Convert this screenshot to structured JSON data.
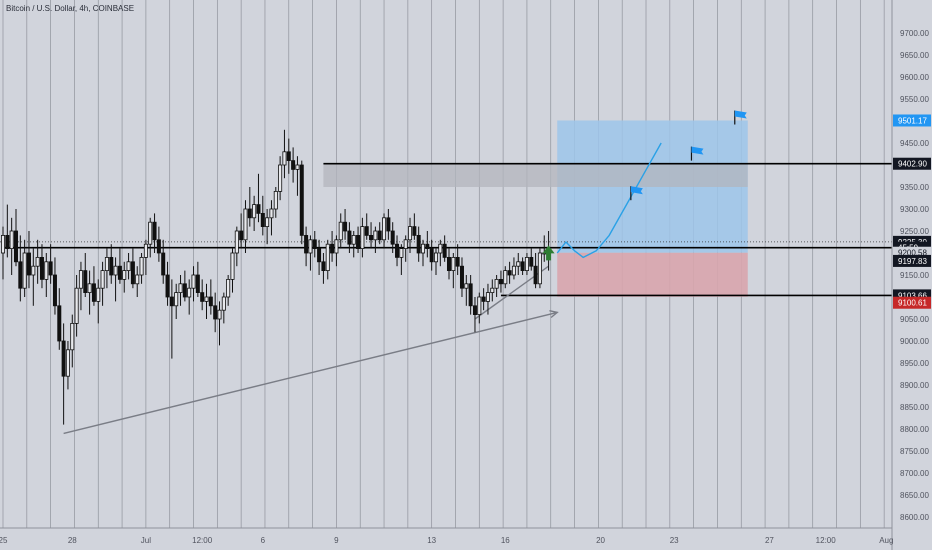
{
  "title": "Bitcoin / U.S. Dollar, 4h, COINBASE",
  "colors": {
    "background": "#d1d4dc",
    "grid": "#8f929b",
    "up": "#1a1a1a",
    "down": "#1a1a1a",
    "target_zone": "#9ec5ea",
    "stop_zone": "#d8a5ad",
    "supply_zone": "#b3b5bd",
    "projection": "#2aa1e6",
    "flag": "#2196f3",
    "arrow": "#2e7d32",
    "trendline": "#7a7d86"
  },
  "chart_data": {
    "type": "candlestick",
    "title": "Bitcoin / U.S. Dollar, 4h, COINBASE",
    "xlabel": "",
    "ylabel": "",
    "ylim": [
      8575,
      9775
    ],
    "grid": "vertical",
    "y_ticks": [
      8600,
      8650,
      8700,
      8750,
      8800,
      8850,
      8900,
      8950,
      9000,
      9050,
      9100,
      9150,
      9200,
      9250,
      9300,
      9350,
      9400,
      9450,
      9500,
      9550,
      9600,
      9650,
      9700
    ],
    "y_tick_labels": [
      "8600.00",
      "8650.00",
      "8700.00",
      "8750.00",
      "8800.00",
      "8850.00",
      "8900.00",
      "8950.00",
      "9000.00",
      "9050.00",
      "9100.00",
      "9150.00",
      "9200.00",
      "9250.00",
      "9300.00",
      "9350.00",
      "9400.00",
      "9450.00",
      "9500.00",
      "9550.00",
      "9600.00",
      "9650.00",
      "9700.00"
    ],
    "x_labels": [
      {
        "label": "25",
        "bar": 0
      },
      {
        "label": "28",
        "bar": 16
      },
      {
        "label": "Jul",
        "bar": 33
      },
      {
        "label": "12:00",
        "bar": 46
      },
      {
        "label": "6",
        "bar": 60
      },
      {
        "label": "9",
        "bar": 77
      },
      {
        "label": "13",
        "bar": 99
      },
      {
        "label": "16",
        "bar": 116
      },
      {
        "label": "20",
        "bar": 138
      },
      {
        "label": "23",
        "bar": 155
      },
      {
        "label": "27",
        "bar": 177
      },
      {
        "label": "12:00",
        "bar": 190
      },
      {
        "label": "Aug",
        "bar": 204
      }
    ],
    "candles": [
      {
        "o": 9200,
        "h": 9260,
        "l": 9140,
        "c": 9240
      },
      {
        "o": 9240,
        "h": 9310,
        "l": 9190,
        "c": 9210
      },
      {
        "o": 9210,
        "h": 9280,
        "l": 9150,
        "c": 9250
      },
      {
        "o": 9250,
        "h": 9300,
        "l": 9170,
        "c": 9180
      },
      {
        "o": 9180,
        "h": 9240,
        "l": 9090,
        "c": 9120
      },
      {
        "o": 9120,
        "h": 9230,
        "l": 9100,
        "c": 9200
      },
      {
        "o": 9200,
        "h": 9250,
        "l": 9120,
        "c": 9150
      },
      {
        "o": 9150,
        "h": 9210,
        "l": 9080,
        "c": 9170
      },
      {
        "o": 9170,
        "h": 9230,
        "l": 9130,
        "c": 9190
      },
      {
        "o": 9190,
        "h": 9220,
        "l": 9120,
        "c": 9140
      },
      {
        "o": 9140,
        "h": 9200,
        "l": 9100,
        "c": 9180
      },
      {
        "o": 9180,
        "h": 9220,
        "l": 9130,
        "c": 9150
      },
      {
        "o": 9150,
        "h": 9190,
        "l": 9060,
        "c": 9080
      },
      {
        "o": 9080,
        "h": 9120,
        "l": 8980,
        "c": 9000
      },
      {
        "o": 9000,
        "h": 9040,
        "l": 8810,
        "c": 8920
      },
      {
        "o": 8920,
        "h": 9000,
        "l": 8890,
        "c": 8980
      },
      {
        "o": 8980,
        "h": 9060,
        "l": 8940,
        "c": 9040
      },
      {
        "o": 9040,
        "h": 9150,
        "l": 9010,
        "c": 9120
      },
      {
        "o": 9120,
        "h": 9180,
        "l": 9070,
        "c": 9160
      },
      {
        "o": 9160,
        "h": 9200,
        "l": 9100,
        "c": 9110
      },
      {
        "o": 9110,
        "h": 9160,
        "l": 9060,
        "c": 9130
      },
      {
        "o": 9130,
        "h": 9170,
        "l": 9080,
        "c": 9090
      },
      {
        "o": 9090,
        "h": 9140,
        "l": 9040,
        "c": 9120
      },
      {
        "o": 9120,
        "h": 9180,
        "l": 9080,
        "c": 9160
      },
      {
        "o": 9160,
        "h": 9210,
        "l": 9120,
        "c": 9190
      },
      {
        "o": 9190,
        "h": 9220,
        "l": 9130,
        "c": 9150
      },
      {
        "o": 9150,
        "h": 9190,
        "l": 9090,
        "c": 9170
      },
      {
        "o": 9170,
        "h": 9210,
        "l": 9130,
        "c": 9140
      },
      {
        "o": 9140,
        "h": 9180,
        "l": 9110,
        "c": 9160
      },
      {
        "o": 9160,
        "h": 9200,
        "l": 9140,
        "c": 9180
      },
      {
        "o": 9180,
        "h": 9210,
        "l": 9120,
        "c": 9130
      },
      {
        "o": 9130,
        "h": 9170,
        "l": 9100,
        "c": 9150
      },
      {
        "o": 9150,
        "h": 9200,
        "l": 9130,
        "c": 9190
      },
      {
        "o": 9190,
        "h": 9230,
        "l": 9150,
        "c": 9220
      },
      {
        "o": 9220,
        "h": 9280,
        "l": 9190,
        "c": 9270
      },
      {
        "o": 9270,
        "h": 9290,
        "l": 9200,
        "c": 9230
      },
      {
        "o": 9230,
        "h": 9260,
        "l": 9180,
        "c": 9200
      },
      {
        "o": 9200,
        "h": 9230,
        "l": 9130,
        "c": 9150
      },
      {
        "o": 9150,
        "h": 9180,
        "l": 9080,
        "c": 9100
      },
      {
        "o": 9100,
        "h": 9140,
        "l": 8960,
        "c": 9080
      },
      {
        "o": 9080,
        "h": 9130,
        "l": 9050,
        "c": 9110
      },
      {
        "o": 9110,
        "h": 9150,
        "l": 9080,
        "c": 9130
      },
      {
        "o": 9130,
        "h": 9160,
        "l": 9090,
        "c": 9100
      },
      {
        "o": 9100,
        "h": 9140,
        "l": 9060,
        "c": 9120
      },
      {
        "o": 9120,
        "h": 9170,
        "l": 9090,
        "c": 9150
      },
      {
        "o": 9150,
        "h": 9180,
        "l": 9100,
        "c": 9110
      },
      {
        "o": 9110,
        "h": 9140,
        "l": 9070,
        "c": 9090
      },
      {
        "o": 9090,
        "h": 9130,
        "l": 9050,
        "c": 9100
      },
      {
        "o": 9100,
        "h": 9140,
        "l": 9060,
        "c": 9080
      },
      {
        "o": 9080,
        "h": 9110,
        "l": 9020,
        "c": 9050
      },
      {
        "o": 9050,
        "h": 9090,
        "l": 8990,
        "c": 9070
      },
      {
        "o": 9070,
        "h": 9110,
        "l": 9040,
        "c": 9100
      },
      {
        "o": 9100,
        "h": 9150,
        "l": 9080,
        "c": 9140
      },
      {
        "o": 9140,
        "h": 9210,
        "l": 9110,
        "c": 9200
      },
      {
        "o": 9200,
        "h": 9260,
        "l": 9170,
        "c": 9250
      },
      {
        "o": 9250,
        "h": 9290,
        "l": 9210,
        "c": 9230
      },
      {
        "o": 9230,
        "h": 9320,
        "l": 9200,
        "c": 9300
      },
      {
        "o": 9300,
        "h": 9350,
        "l": 9260,
        "c": 9280
      },
      {
        "o": 9280,
        "h": 9330,
        "l": 9250,
        "c": 9310
      },
      {
        "o": 9310,
        "h": 9380,
        "l": 9270,
        "c": 9290
      },
      {
        "o": 9290,
        "h": 9330,
        "l": 9240,
        "c": 9260
      },
      {
        "o": 9260,
        "h": 9300,
        "l": 9220,
        "c": 9280
      },
      {
        "o": 9280,
        "h": 9320,
        "l": 9240,
        "c": 9300
      },
      {
        "o": 9300,
        "h": 9350,
        "l": 9280,
        "c": 9340
      },
      {
        "o": 9340,
        "h": 9420,
        "l": 9320,
        "c": 9400
      },
      {
        "o": 9400,
        "h": 9480,
        "l": 9370,
        "c": 9430
      },
      {
        "o": 9430,
        "h": 9460,
        "l": 9380,
        "c": 9410
      },
      {
        "o": 9410,
        "h": 9440,
        "l": 9360,
        "c": 9390
      },
      {
        "o": 9390,
        "h": 9420,
        "l": 9330,
        "c": 9400
      },
      {
        "o": 9400,
        "h": 9410,
        "l": 9220,
        "c": 9240
      },
      {
        "o": 9240,
        "h": 9260,
        "l": 9170,
        "c": 9200
      },
      {
        "o": 9200,
        "h": 9240,
        "l": 9160,
        "c": 9230
      },
      {
        "o": 9230,
        "h": 9250,
        "l": 9190,
        "c": 9210
      },
      {
        "o": 9210,
        "h": 9230,
        "l": 9150,
        "c": 9180
      },
      {
        "o": 9180,
        "h": 9200,
        "l": 9130,
        "c": 9160
      },
      {
        "o": 9160,
        "h": 9230,
        "l": 9140,
        "c": 9220
      },
      {
        "o": 9220,
        "h": 9250,
        "l": 9180,
        "c": 9200
      },
      {
        "o": 9200,
        "h": 9240,
        "l": 9170,
        "c": 9230
      },
      {
        "o": 9230,
        "h": 9290,
        "l": 9210,
        "c": 9270
      },
      {
        "o": 9270,
        "h": 9300,
        "l": 9230,
        "c": 9250
      },
      {
        "o": 9250,
        "h": 9270,
        "l": 9200,
        "c": 9220
      },
      {
        "o": 9220,
        "h": 9250,
        "l": 9190,
        "c": 9240
      },
      {
        "o": 9240,
        "h": 9260,
        "l": 9200,
        "c": 9210
      },
      {
        "o": 9210,
        "h": 9280,
        "l": 9190,
        "c": 9260
      },
      {
        "o": 9260,
        "h": 9290,
        "l": 9230,
        "c": 9240
      },
      {
        "o": 9240,
        "h": 9270,
        "l": 9210,
        "c": 9230
      },
      {
        "o": 9230,
        "h": 9260,
        "l": 9200,
        "c": 9250
      },
      {
        "o": 9250,
        "h": 9270,
        "l": 9220,
        "c": 9230
      },
      {
        "o": 9230,
        "h": 9290,
        "l": 9210,
        "c": 9280
      },
      {
        "o": 9280,
        "h": 9300,
        "l": 9230,
        "c": 9250
      },
      {
        "o": 9250,
        "h": 9270,
        "l": 9200,
        "c": 9220
      },
      {
        "o": 9220,
        "h": 9240,
        "l": 9170,
        "c": 9190
      },
      {
        "o": 9190,
        "h": 9220,
        "l": 9150,
        "c": 9210
      },
      {
        "o": 9210,
        "h": 9240,
        "l": 9180,
        "c": 9230
      },
      {
        "o": 9230,
        "h": 9280,
        "l": 9200,
        "c": 9260
      },
      {
        "o": 9260,
        "h": 9290,
        "l": 9230,
        "c": 9240
      },
      {
        "o": 9240,
        "h": 9260,
        "l": 9180,
        "c": 9200
      },
      {
        "o": 9200,
        "h": 9230,
        "l": 9170,
        "c": 9220
      },
      {
        "o": 9220,
        "h": 9250,
        "l": 9190,
        "c": 9210
      },
      {
        "o": 9210,
        "h": 9230,
        "l": 9160,
        "c": 9180
      },
      {
        "o": 9180,
        "h": 9210,
        "l": 9150,
        "c": 9200
      },
      {
        "o": 9200,
        "h": 9230,
        "l": 9170,
        "c": 9220
      },
      {
        "o": 9220,
        "h": 9240,
        "l": 9180,
        "c": 9190
      },
      {
        "o": 9190,
        "h": 9210,
        "l": 9140,
        "c": 9160
      },
      {
        "o": 9160,
        "h": 9200,
        "l": 9120,
        "c": 9190
      },
      {
        "o": 9190,
        "h": 9220,
        "l": 9150,
        "c": 9170
      },
      {
        "o": 9170,
        "h": 9190,
        "l": 9100,
        "c": 9120
      },
      {
        "o": 9120,
        "h": 9150,
        "l": 9080,
        "c": 9130
      },
      {
        "o": 9130,
        "h": 9150,
        "l": 9060,
        "c": 9080
      },
      {
        "o": 9080,
        "h": 9100,
        "l": 9020,
        "c": 9060
      },
      {
        "o": 9060,
        "h": 9110,
        "l": 9040,
        "c": 9100
      },
      {
        "o": 9100,
        "h": 9120,
        "l": 9070,
        "c": 9090
      },
      {
        "o": 9090,
        "h": 9130,
        "l": 9060,
        "c": 9110
      },
      {
        "o": 9110,
        "h": 9140,
        "l": 9090,
        "c": 9120
      },
      {
        "o": 9120,
        "h": 9150,
        "l": 9100,
        "c": 9140
      },
      {
        "o": 9140,
        "h": 9160,
        "l": 9110,
        "c": 9130
      },
      {
        "o": 9130,
        "h": 9170,
        "l": 9120,
        "c": 9160
      },
      {
        "o": 9160,
        "h": 9180,
        "l": 9130,
        "c": 9150
      },
      {
        "o": 9150,
        "h": 9190,
        "l": 9140,
        "c": 9170
      },
      {
        "o": 9170,
        "h": 9200,
        "l": 9150,
        "c": 9180
      },
      {
        "o": 9180,
        "h": 9190,
        "l": 9150,
        "c": 9160
      },
      {
        "o": 9160,
        "h": 9200,
        "l": 9150,
        "c": 9190
      },
      {
        "o": 9190,
        "h": 9210,
        "l": 9160,
        "c": 9170
      },
      {
        "o": 9170,
        "h": 9200,
        "l": 9120,
        "c": 9130
      },
      {
        "o": 9130,
        "h": 9210,
        "l": 9120,
        "c": 9200
      },
      {
        "o": 9200,
        "h": 9240,
        "l": 9180,
        "c": 9200
      },
      {
        "o": 9200,
        "h": 9250,
        "l": 9160,
        "c": 9197.83
      }
    ],
    "trade": {
      "entry": 9200.58,
      "target": 9501.17,
      "stop": 9100.61,
      "start_bar": 128,
      "end_bar": 172
    },
    "horizontal_levels": [
      {
        "price": 9402.9,
        "from_bar": 74
      },
      {
        "price": 9103.66,
        "from_bar": 115
      },
      {
        "price": 9212,
        "from_bar": 0
      }
    ],
    "dotted_level": 9225.3,
    "supply_zone": {
      "from_bar": 74,
      "to_bar": 172,
      "top": 9402.9,
      "bottom": 9350
    },
    "trendlines": [
      {
        "bar1": 14,
        "price1": 8790,
        "bar2": 128,
        "price2": 9065,
        "arrow": true
      },
      {
        "bar1": 109,
        "price1": 9050,
        "bar2": 126,
        "price2": 9170,
        "arrow": false
      }
    ],
    "projection": [
      {
        "bar": 128,
        "price": 9200
      },
      {
        "bar": 130,
        "price": 9225
      },
      {
        "bar": 132,
        "price": 9205
      },
      {
        "bar": 134,
        "price": 9190
      },
      {
        "bar": 137,
        "price": 9205
      },
      {
        "bar": 140,
        "price": 9240
      },
      {
        "bar": 144,
        "price": 9310
      },
      {
        "bar": 148,
        "price": 9380
      },
      {
        "bar": 152,
        "price": 9450
      }
    ],
    "flags": [
      {
        "bar": 145,
        "price": 9320
      },
      {
        "bar": 159,
        "price": 9410
      },
      {
        "bar": 169,
        "price": 9492
      }
    ],
    "up_arrow": {
      "bar": 126,
      "price": 9190
    },
    "price_labels": [
      {
        "text": "9501.17",
        "price": 9501.17,
        "bg": "#2196f3",
        "fg": "#ffffff"
      },
      {
        "text": "9402.90",
        "price": 9402.9,
        "bg": "#131722",
        "fg": "#ffffff"
      },
      {
        "text": "9225.30",
        "price": 9225.3,
        "bg": "#131722",
        "fg": "#ffffff"
      },
      {
        "text": "45:59",
        "price": 9212,
        "bg": "#131722",
        "fg": "#ffffff"
      },
      {
        "text": "9200.58",
        "price": 9200.58,
        "bg": "#d1d4dc",
        "fg": "#131722"
      },
      {
        "text": "9197.83",
        "price": 9182,
        "bg": "#131722",
        "fg": "#ffffff"
      },
      {
        "text": "9103.66",
        "price": 9103.66,
        "bg": "#131722",
        "fg": "#ffffff"
      },
      {
        "text": "9100.61",
        "price": 9087,
        "bg": "#c62828",
        "fg": "#ffffff"
      }
    ]
  }
}
